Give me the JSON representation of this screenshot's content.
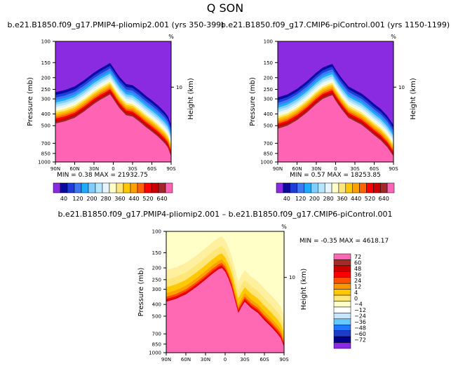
{
  "page_title": "Q SON",
  "chart_data": [
    {
      "type": "contour",
      "title": "b.e21.B1850.f09_g17.PMIP4-pliomip2.001 (yrs 350-399)",
      "ylabel": "Pressure (mb)",
      "ylabel_right": "Height (km)",
      "unit_label": "%",
      "x_tick_labels": [
        "90N",
        "60N",
        "30N",
        "0",
        "30S",
        "60S",
        "90S"
      ],
      "y_tick_labels": [
        "100",
        "150",
        "200",
        "250",
        "300",
        "400",
        "500",
        "700",
        "850",
        "1000"
      ],
      "y_ticks": [
        100,
        150,
        200,
        250,
        300,
        400,
        500,
        700,
        850,
        1000
      ],
      "right_tick_labels": [
        "10"
      ],
      "right_ticks": [
        10
      ],
      "xlim": [
        90,
        -90
      ],
      "ylim": [
        1000,
        100
      ],
      "min_label": "MIN =",
      "min_value": "0.38",
      "max_label": "MAX =",
      "max_value": "21932.75",
      "profile_lat": [
        90,
        75,
        60,
        45,
        30,
        20,
        10,
        5,
        0,
        -5,
        -10,
        -20,
        -30,
        -40,
        -50,
        -60,
        -70,
        -80,
        -85,
        -90
      ],
      "profile_p": [
        480,
        460,
        430,
        380,
        330,
        305,
        285,
        275,
        300,
        330,
        360,
        410,
        420,
        460,
        510,
        560,
        620,
        700,
        760,
        900
      ],
      "colorbar_labels": [
        "40",
        "120",
        "200",
        "280",
        "360",
        "440",
        "520",
        "640"
      ],
      "colorbar_colors": [
        "#8a2be2",
        "#0a0aa0",
        "#1e3cdc",
        "#3c78f0",
        "#1eaaff",
        "#82cdff",
        "#b4e6ff",
        "#e6f5ff",
        "#ffffc8",
        "#ffe678",
        "#ffc800",
        "#ffa000",
        "#ff6400",
        "#ff0000",
        "#c80000",
        "#a02828",
        "#ff64b4"
      ]
    },
    {
      "type": "contour",
      "title": "b.e21.B1850.f09_g17.CMIP6-piControl.001 (yrs 1150-1199)",
      "ylabel": "Pressure (mb)",
      "ylabel_right": "Height (km)",
      "unit_label": "%",
      "x_tick_labels": [
        "90N",
        "60N",
        "30N",
        "0",
        "30S",
        "60S",
        "90S"
      ],
      "y_tick_labels": [
        "100",
        "150",
        "200",
        "250",
        "300",
        "400",
        "500",
        "700",
        "850",
        "1000"
      ],
      "y_ticks": [
        100,
        150,
        200,
        250,
        300,
        400,
        500,
        700,
        850,
        1000
      ],
      "right_tick_labels": [
        "10"
      ],
      "right_ticks": [
        10
      ],
      "xlim": [
        90,
        -90
      ],
      "ylim": [
        1000,
        100
      ],
      "min_label": "MIN =",
      "min_value": "0.57",
      "max_label": "MAX =",
      "max_value": "18253.85",
      "profile_lat": [
        90,
        75,
        60,
        45,
        30,
        20,
        10,
        5,
        0,
        -5,
        -10,
        -20,
        -30,
        -40,
        -50,
        -60,
        -70,
        -80,
        -85,
        -90
      ],
      "profile_p": [
        530,
        500,
        450,
        390,
        330,
        300,
        285,
        280,
        310,
        340,
        370,
        430,
        460,
        490,
        540,
        600,
        660,
        750,
        820,
        900
      ],
      "colorbar_labels": [
        "40",
        "120",
        "200",
        "280",
        "360",
        "440",
        "520",
        "640"
      ],
      "colorbar_colors": [
        "#8a2be2",
        "#0a0aa0",
        "#1e3cdc",
        "#3c78f0",
        "#1eaaff",
        "#82cdff",
        "#b4e6ff",
        "#e6f5ff",
        "#ffffc8",
        "#ffe678",
        "#ffc800",
        "#ffa000",
        "#ff6400",
        "#ff0000",
        "#c80000",
        "#a02828",
        "#ff64b4"
      ]
    },
    {
      "type": "contour",
      "title": "b.e21.B1850.f09_g17.PMIP4-pliomip2.001 – b.e21.B1850.f09_g17.CMIP6-piControl.001",
      "ylabel": "Pressure (mb)",
      "ylabel_right": "Height (km)",
      "unit_label": "%",
      "x_tick_labels": [
        "90N",
        "60N",
        "30N",
        "0",
        "30S",
        "60S",
        "90S"
      ],
      "y_tick_labels": [
        "100",
        "150",
        "200",
        "250",
        "300",
        "400",
        "500",
        "700",
        "850",
        "1000"
      ],
      "y_ticks": [
        100,
        150,
        200,
        250,
        300,
        400,
        500,
        700,
        850,
        1000
      ],
      "right_tick_labels": [
        "10"
      ],
      "right_ticks": [
        10
      ],
      "xlim": [
        90,
        -90
      ],
      "ylim": [
        1000,
        100
      ],
      "min_label": "MIN =",
      "min_value": "-0.35",
      "max_label": "MAX =",
      "max_value": "4618.17",
      "profile_lat": [
        90,
        75,
        60,
        45,
        30,
        20,
        10,
        5,
        0,
        -5,
        -10,
        -15,
        -20,
        -25,
        -30,
        -40,
        -50,
        -60,
        -70,
        -80,
        -85,
        -90
      ],
      "profile_p": [
        380,
        360,
        330,
        290,
        250,
        225,
        205,
        200,
        215,
        245,
        290,
        370,
        470,
        420,
        380,
        430,
        470,
        540,
        610,
        700,
        760,
        900
      ],
      "colorbar_labels": [
        "72",
        "60",
        "48",
        "36",
        "24",
        "12",
        "4",
        "0",
        "−4",
        "−12",
        "−24",
        "−36",
        "−48",
        "−60",
        "−72"
      ],
      "colorbar_colors": [
        "#ff69b4",
        "#a52a2a",
        "#c80000",
        "#ff0000",
        "#ff5000",
        "#ff9600",
        "#ffc800",
        "#ffe678",
        "#ffffc8",
        "#ffffff",
        "#c8e6ff",
        "#64c8ff",
        "#1e78ff",
        "#1e3cc8",
        "#00008c",
        "#8a2be2"
      ]
    }
  ]
}
